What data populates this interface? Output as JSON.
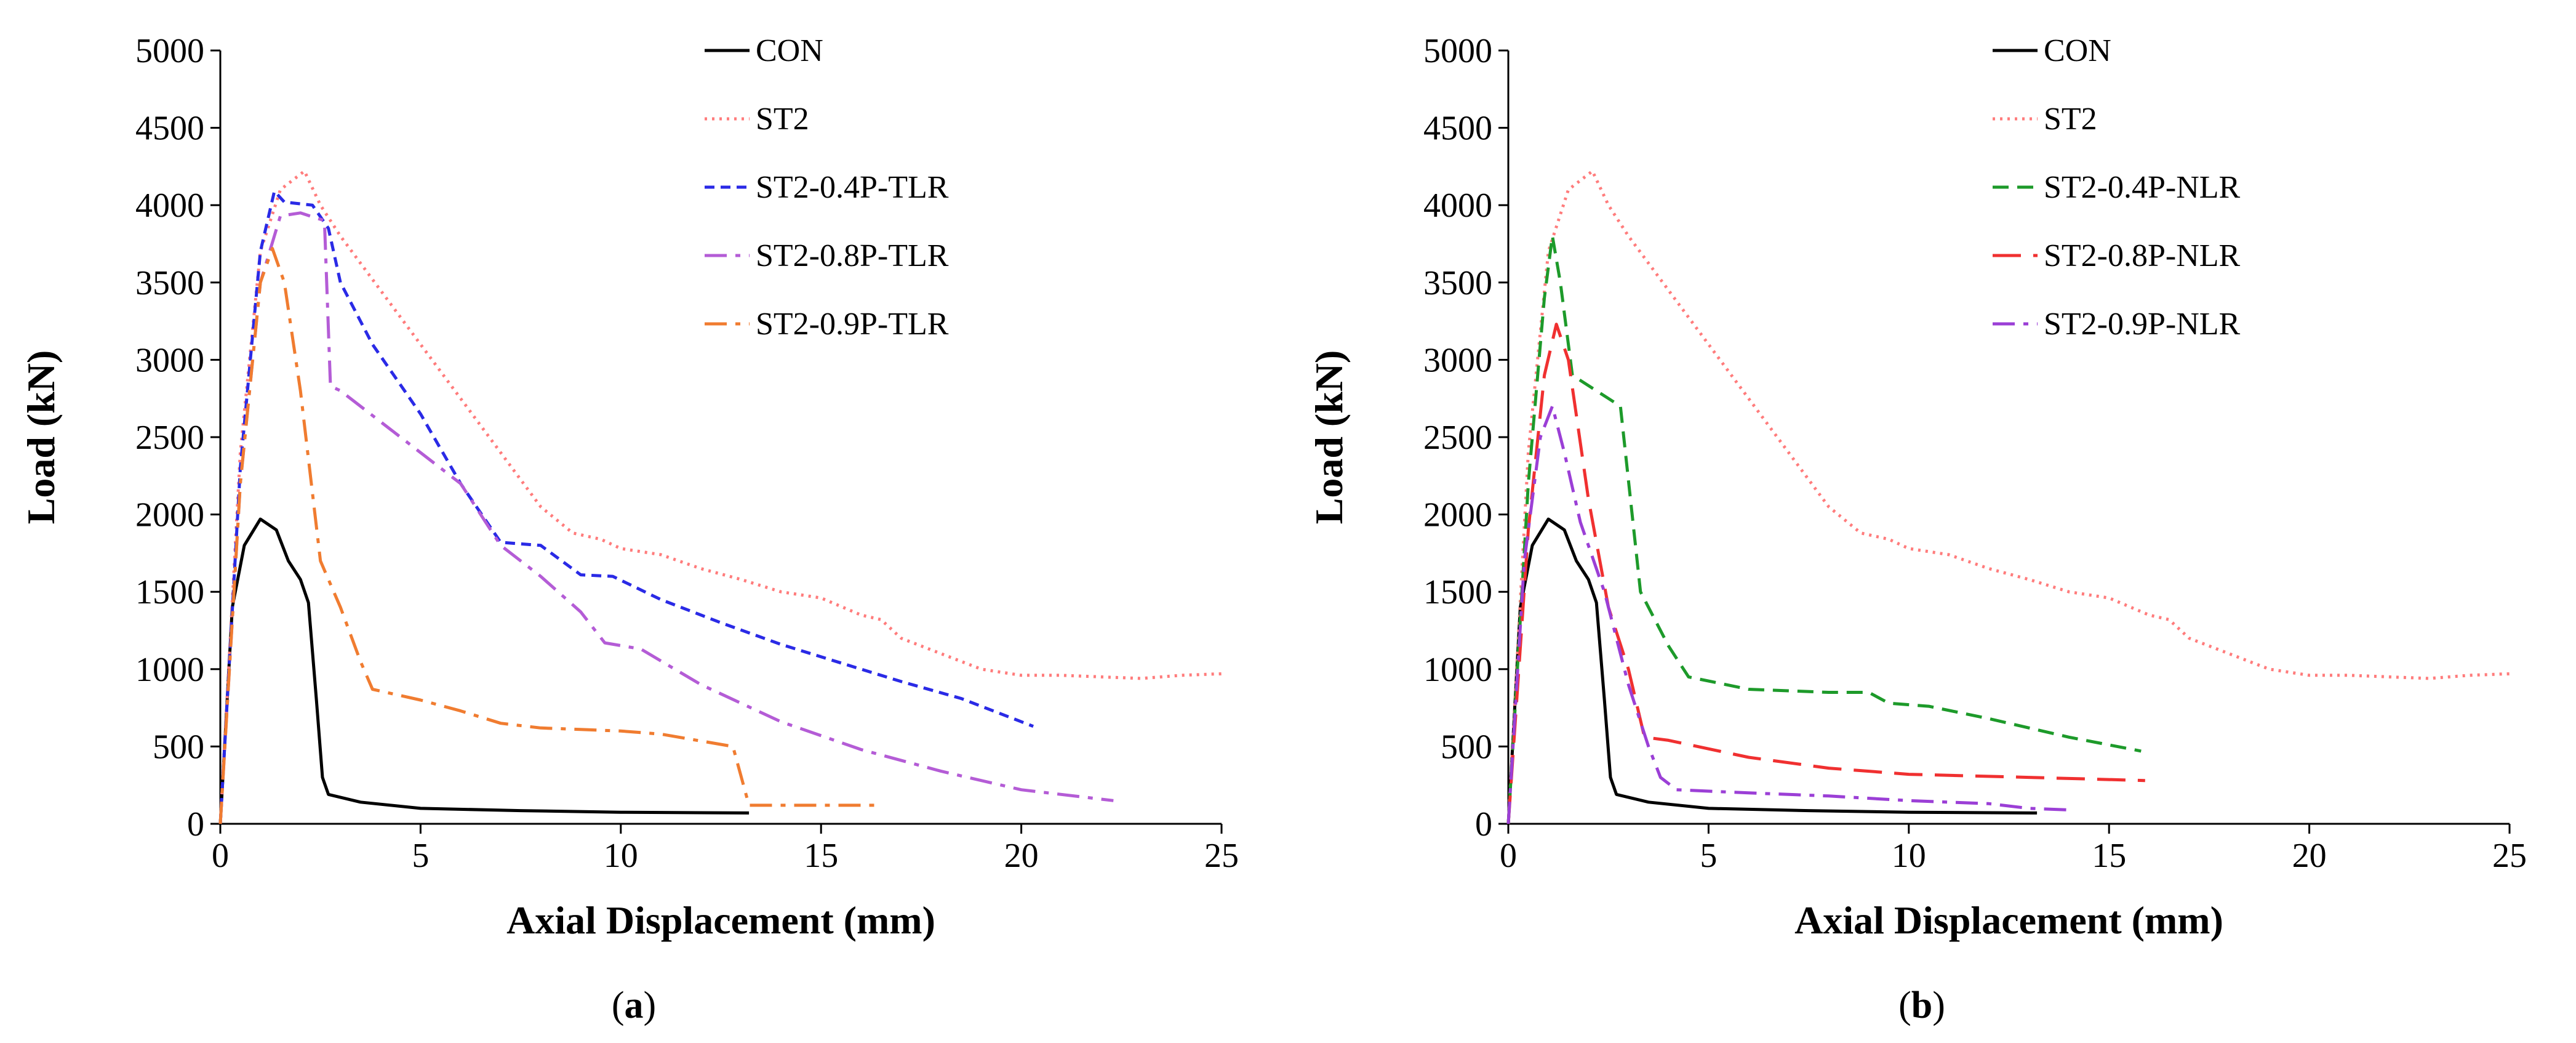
{
  "chart_data": [
    {
      "type": "line",
      "panel_label": "a",
      "xlabel": "Axial Displacement (mm)",
      "ylabel": "Load (kN)",
      "xlim": [
        0,
        25
      ],
      "ylim": [
        0,
        5000
      ],
      "xticks": [
        0,
        5,
        10,
        15,
        20,
        25
      ],
      "yticks": [
        0,
        500,
        1000,
        1500,
        2000,
        2500,
        3000,
        3500,
        4000,
        4500,
        5000
      ],
      "grid": false,
      "legend": "top-right",
      "series": [
        {
          "name": "CON",
          "color": "#000000",
          "dash": "solid",
          "x": [
            0,
            0.3,
            0.6,
            1.0,
            1.4,
            1.7,
            2.0,
            2.2,
            2.4,
            2.55,
            2.7,
            3.5,
            5,
            7.5,
            10,
            13.2
          ],
          "y": [
            0,
            1400,
            1800,
            1970,
            1900,
            1700,
            1580,
            1430,
            800,
            300,
            190,
            140,
            100,
            85,
            75,
            70
          ]
        },
        {
          "name": "ST2",
          "color": "#ff7c7c",
          "dash": "dot",
          "x": [
            0,
            0.5,
            1.0,
            1.5,
            2.1,
            2.5,
            3,
            4,
            5,
            6,
            7,
            8,
            8.8,
            9.5,
            10,
            11,
            12,
            13,
            14,
            15,
            16,
            16.5,
            17,
            18,
            19,
            20,
            21,
            22,
            23,
            24,
            25
          ],
          "y": [
            0,
            2400,
            3700,
            4100,
            4220,
            4000,
            3800,
            3450,
            3100,
            2750,
            2400,
            2050,
            1880,
            1840,
            1780,
            1740,
            1650,
            1580,
            1500,
            1460,
            1350,
            1320,
            1200,
            1100,
            1000,
            960,
            960,
            950,
            940,
            960,
            970
          ]
        },
        {
          "name": "ST2-0.4P-TLR",
          "color": "#2a2ae6",
          "dash": "shortdash",
          "x": [
            0,
            0.5,
            1.0,
            1.35,
            1.6,
            2.3,
            2.7,
            3.0,
            3.8,
            5,
            6,
            7,
            8,
            9,
            9.8,
            11,
            12.5,
            14,
            15.5,
            17,
            18.5,
            20.3
          ],
          "y": [
            0,
            2300,
            3700,
            4090,
            4020,
            4000,
            3850,
            3500,
            3100,
            2650,
            2200,
            1820,
            1800,
            1610,
            1600,
            1450,
            1300,
            1160,
            1040,
            920,
            810,
            630
          ]
        },
        {
          "name": "ST2-0.8P-TLR",
          "color": "#b45cd6",
          "dash": "dashdot",
          "x": [
            0,
            0.5,
            1.0,
            1.5,
            2.0,
            2.6,
            2.75,
            3.0,
            4,
            5,
            6,
            7,
            8,
            9,
            9.6,
            10.5,
            12,
            14,
            16,
            18,
            20,
            22.3
          ],
          "y": [
            0,
            2200,
            3500,
            3930,
            3950,
            3900,
            2830,
            2800,
            2600,
            2400,
            2200,
            1800,
            1600,
            1370,
            1170,
            1130,
            900,
            660,
            480,
            340,
            220,
            150
          ]
        },
        {
          "name": "ST2-0.9P-TLR",
          "color": "#f07c30",
          "dash": "dashdot",
          "x": [
            0,
            0.5,
            1.0,
            1.3,
            1.6,
            2.0,
            2.5,
            3.0,
            3.5,
            3.8,
            5,
            6,
            7,
            8,
            9,
            10,
            11,
            12.8,
            13.2,
            16.4
          ],
          "y": [
            0,
            2200,
            3500,
            3720,
            3500,
            2800,
            1700,
            1400,
            1050,
            870,
            800,
            730,
            650,
            620,
            610,
            600,
            580,
            500,
            120,
            120
          ]
        }
      ]
    },
    {
      "type": "line",
      "panel_label": "b",
      "xlabel": "Axial Displacement (mm)",
      "ylabel": "Load (kN)",
      "xlim": [
        0,
        25
      ],
      "ylim": [
        0,
        5000
      ],
      "xticks": [
        0,
        5,
        10,
        15,
        20,
        25
      ],
      "yticks": [
        0,
        500,
        1000,
        1500,
        2000,
        2500,
        3000,
        3500,
        4000,
        4500,
        5000
      ],
      "grid": false,
      "legend": "top-right",
      "series": [
        {
          "name": "CON",
          "color": "#000000",
          "dash": "solid",
          "x": [
            0,
            0.3,
            0.6,
            1.0,
            1.4,
            1.7,
            2.0,
            2.2,
            2.4,
            2.55,
            2.7,
            3.5,
            5,
            7.5,
            10,
            13.2
          ],
          "y": [
            0,
            1400,
            1800,
            1970,
            1900,
            1700,
            1580,
            1430,
            800,
            300,
            190,
            140,
            100,
            85,
            75,
            70
          ]
        },
        {
          "name": "ST2",
          "color": "#ff7c7c",
          "dash": "dot",
          "x": [
            0,
            0.5,
            1.0,
            1.5,
            2.1,
            2.5,
            3,
            4,
            5,
            6,
            7,
            8,
            8.8,
            9.5,
            10,
            11,
            12,
            13,
            14,
            15,
            16,
            16.5,
            17,
            18,
            19,
            20,
            21,
            22,
            23,
            24,
            25
          ],
          "y": [
            0,
            2400,
            3700,
            4100,
            4220,
            4000,
            3800,
            3450,
            3100,
            2750,
            2400,
            2050,
            1880,
            1840,
            1780,
            1740,
            1650,
            1580,
            1500,
            1460,
            1350,
            1320,
            1200,
            1100,
            1000,
            960,
            960,
            950,
            940,
            960,
            970
          ]
        },
        {
          "name": "ST2-0.4P-NLR",
          "color": "#1d9a2a",
          "dash": "dash",
          "x": [
            0,
            0.5,
            0.9,
            1.1,
            1.3,
            1.6,
            2.5,
            2.8,
            3.3,
            4,
            4.5,
            6,
            8,
            9,
            9.5,
            10.5,
            12,
            14,
            15.8
          ],
          "y": [
            0,
            2200,
            3400,
            3800,
            3500,
            2900,
            2750,
            2700,
            1500,
            1150,
            950,
            870,
            850,
            850,
            780,
            760,
            680,
            560,
            470
          ]
        },
        {
          "name": "ST2-0.8P-NLR",
          "color": "#f03030",
          "dash": "longdash",
          "x": [
            0,
            0.5,
            0.9,
            1.2,
            1.5,
            2.0,
            2.5,
            3.0,
            3.4,
            4,
            6,
            8,
            10,
            13,
            15.9
          ],
          "y": [
            0,
            1900,
            2900,
            3230,
            3000,
            2100,
            1400,
            1000,
            560,
            540,
            430,
            360,
            320,
            300,
            280
          ]
        },
        {
          "name": "ST2-0.9P-NLR",
          "color": "#9b3fd6",
          "dash": "dashdot",
          "x": [
            0,
            0.4,
            0.8,
            1.1,
            1.4,
            1.8,
            2.4,
            3.0,
            3.5,
            3.8,
            4.2,
            6,
            8,
            10,
            12,
            13,
            14
          ],
          "y": [
            0,
            1700,
            2500,
            2700,
            2400,
            1950,
            1500,
            900,
            500,
            300,
            220,
            200,
            180,
            150,
            130,
            100,
            90
          ]
        }
      ]
    }
  ]
}
